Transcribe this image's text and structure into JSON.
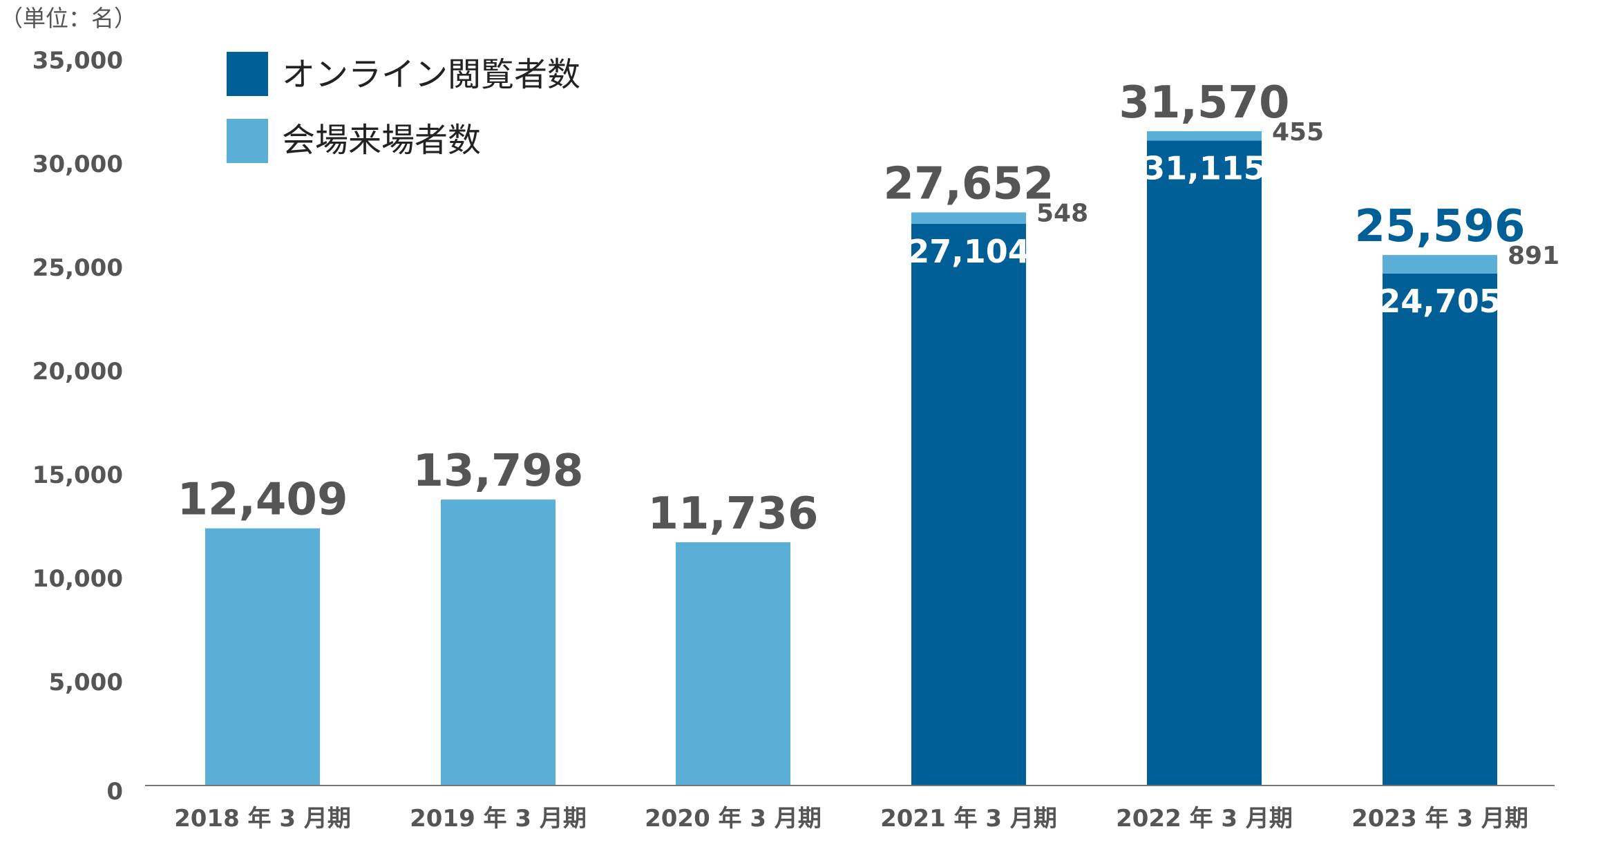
{
  "colors": {
    "online": "#005f97",
    "venue": "#59afd8",
    "axis": "#777777",
    "highlight_total": "#005f97"
  },
  "chart_data": {
    "type": "bar",
    "stacked": true,
    "unit_label": "（単位：名）",
    "categories": [
      "2018 年 3 月期",
      "2019 年 3 月期",
      "2020 年 3 月期",
      "2021 年 3 月期",
      "2022 年 3 月期",
      "2023 年 3 月期"
    ],
    "series": [
      {
        "name": "オンライン閲覧者数",
        "values": [
          0,
          0,
          0,
          27104,
          31115,
          24705
        ]
      },
      {
        "name": "会場来場者数",
        "values": [
          12409,
          13798,
          11736,
          548,
          455,
          891
        ]
      }
    ],
    "totals": [
      "12,409",
      "13,798",
      "11,736",
      "27,652",
      "31,570",
      "25,596"
    ],
    "online_labels": [
      "",
      "",
      "",
      "27,104",
      "31,115",
      "24,705"
    ],
    "venue_labels": [
      "",
      "",
      "",
      "548",
      "455",
      "891"
    ],
    "highlight_total_index": 5,
    "ylim": [
      0,
      35000
    ],
    "yticks": [
      0,
      5000,
      10000,
      15000,
      20000,
      25000,
      30000,
      35000
    ],
    "ytick_labels": [
      "0",
      "5,000",
      "10,000",
      "15,000",
      "20,000",
      "25,000",
      "30,000",
      "35,000"
    ],
    "legend_position": "top-left",
    "grid": false
  }
}
